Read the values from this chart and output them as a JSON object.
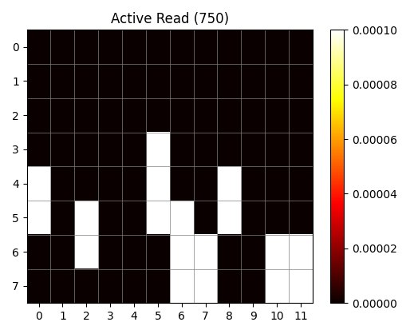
{
  "title": "Active Read (750)",
  "nrows": 8,
  "ncols": 12,
  "vmin": 0.0,
  "vmax": 0.0001,
  "colormap": "hot",
  "grid_data": [
    [
      0,
      0,
      0,
      0,
      0,
      0,
      0,
      0,
      0,
      0,
      0,
      0
    ],
    [
      0,
      0,
      0,
      0,
      0,
      0,
      0,
      0,
      0,
      0,
      0,
      0
    ],
    [
      0,
      0,
      0,
      0,
      0,
      0,
      0,
      0,
      0,
      0,
      0,
      0
    ],
    [
      0,
      0,
      0,
      0,
      0,
      0.0001,
      0,
      0,
      0,
      0,
      0,
      0
    ],
    [
      0.0001,
      0,
      0,
      0,
      0,
      0.0001,
      0,
      0,
      0.0001,
      0,
      0,
      0
    ],
    [
      0.0001,
      0,
      0.0001,
      0,
      0,
      0.0001,
      0.0001,
      0,
      0.0001,
      0,
      0,
      0
    ],
    [
      0,
      0,
      0.0001,
      0,
      0,
      0,
      0.0001,
      0.0001,
      0,
      0,
      0.0001,
      0.0001
    ],
    [
      0,
      0,
      0,
      0,
      0,
      0,
      0.0001,
      0.0001,
      0,
      0,
      0.0001,
      0.0001
    ]
  ],
  "xticks": [
    0,
    1,
    2,
    3,
    4,
    5,
    6,
    7,
    8,
    9,
    10,
    11
  ],
  "yticks": [
    0,
    1,
    2,
    3,
    4,
    5,
    6,
    7
  ],
  "figwidth": 5.19,
  "figheight": 4.18,
  "dpi": 100
}
